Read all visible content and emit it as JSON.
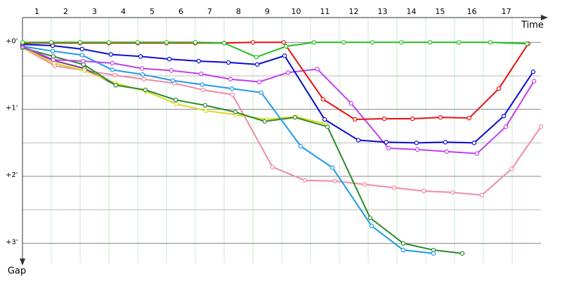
{
  "chart_data": {
    "type": "line",
    "x_label": "Time",
    "y_label": "Gap",
    "xlim": [
      0,
      18.5
    ],
    "ylim": [
      -0.37,
      3.3
    ],
    "y_inverted": true,
    "xticks": [
      {
        "value": 0.5,
        "label": "1"
      },
      {
        "value": 1.5,
        "label": "2"
      },
      {
        "value": 2.5,
        "label": "3"
      },
      {
        "value": 3.5,
        "label": "4"
      },
      {
        "value": 4.5,
        "label": "5"
      },
      {
        "value": 5.5,
        "label": "6"
      },
      {
        "value": 6.5,
        "label": "7"
      },
      {
        "value": 7.5,
        "label": "8"
      },
      {
        "value": 8.5,
        "label": "9"
      },
      {
        "value": 9.5,
        "label": "10"
      },
      {
        "value": 10.5,
        "label": "11"
      },
      {
        "value": 11.5,
        "label": "12"
      },
      {
        "value": 12.5,
        "label": "13"
      },
      {
        "value": 13.5,
        "label": "14"
      },
      {
        "value": 14.5,
        "label": "15"
      },
      {
        "value": 15.6,
        "label": "16"
      },
      {
        "value": 16.8,
        "label": "17"
      }
    ],
    "xgrid": [
      1,
      2,
      3,
      4,
      5,
      6,
      7,
      8,
      9,
      10,
      11,
      12,
      13,
      14,
      15,
      16,
      17
    ],
    "yticks": [
      {
        "value": 0,
        "label": "+0'"
      },
      {
        "value": 1,
        "label": "+1'"
      },
      {
        "value": 2,
        "label": "+2'"
      },
      {
        "value": 3,
        "label": "+3'"
      }
    ],
    "minor_yticks": [
      0.5,
      1.5,
      2.5
    ],
    "series": [
      {
        "color": "#f08aa8",
        "x": [
          0,
          1.12,
          2.17,
          3.2,
          4.22,
          5.27,
          6.27,
          7.29,
          8.68,
          9.8,
          10.85,
          11.88,
          12.9,
          13.93,
          14.93,
          15.95,
          16.98,
          18.0
        ],
        "values": [
          0.08,
          0.35,
          0.42,
          0.49,
          0.55,
          0.61,
          0.71,
          0.78,
          1.86,
          2.06,
          2.07,
          2.12,
          2.17,
          2.22,
          2.24,
          2.28,
          1.89,
          1.26
        ]
      },
      {
        "color": "#7a3a8a",
        "x": [
          0,
          1.07,
          2.15,
          3.24
        ],
        "values": [
          0.08,
          0.27,
          0.39,
          0.64
        ]
      },
      {
        "color": "#d8d820",
        "x": [
          0,
          1.1,
          2.15,
          3.22,
          4.29,
          5.34,
          6.37,
          7.41,
          8.46,
          9.49,
          10.54
        ],
        "values": [
          0.08,
          0.31,
          0.42,
          0.61,
          0.73,
          0.92,
          1.02,
          1.08,
          1.15,
          1.11,
          1.22
        ]
      },
      {
        "color": "#2a8a2a",
        "x": [
          0,
          1.07,
          2.12,
          3.24,
          4.27,
          5.32,
          6.34,
          7.39,
          8.41,
          9.46,
          10.59,
          12.07,
          13.22,
          14.27,
          15.27
        ],
        "values": [
          0.08,
          0.21,
          0.33,
          0.64,
          0.71,
          0.86,
          0.94,
          1.04,
          1.18,
          1.12,
          1.26,
          2.62,
          3.0,
          3.1,
          3.15
        ]
      },
      {
        "color": "#1e9be6",
        "x": [
          0,
          1.05,
          2.07,
          3.12,
          4.17,
          5.22,
          6.24,
          7.27,
          8.29,
          9.66,
          10.76,
          12.12,
          13.22,
          14.27
        ],
        "values": [
          0.06,
          0.13,
          0.19,
          0.41,
          0.48,
          0.57,
          0.63,
          0.69,
          0.75,
          1.55,
          1.87,
          2.74,
          3.1,
          3.15
        ]
      },
      {
        "color": "#c040f0",
        "x": [
          0,
          1.07,
          2.1,
          3.12,
          4.15,
          5.17,
          6.2,
          7.22,
          8.22,
          9.22,
          10.24,
          11.41,
          12.71,
          13.71,
          14.73,
          15.78,
          16.78,
          17.76
        ],
        "values": [
          0.06,
          0.26,
          0.28,
          0.31,
          0.39,
          0.42,
          0.47,
          0.55,
          0.59,
          0.45,
          0.4,
          0.91,
          1.58,
          1.6,
          1.63,
          1.66,
          1.26,
          0.58
        ]
      },
      {
        "color": "#0a0ad0",
        "x": [
          0,
          1.05,
          2.07,
          3.07,
          4.1,
          5.1,
          6.12,
          7.15,
          8.15,
          9.1,
          10.49,
          11.66,
          12.63,
          13.68,
          14.68,
          15.68,
          16.71,
          17.73
        ],
        "values": [
          0.03,
          0.05,
          0.1,
          0.18,
          0.21,
          0.25,
          0.28,
          0.3,
          0.33,
          0.2,
          1.15,
          1.46,
          1.49,
          1.5,
          1.49,
          1.5,
          1.1,
          0.44
        ]
      },
      {
        "color": "#e81010",
        "x": [
          0,
          1,
          2,
          3,
          4,
          5,
          6,
          7,
          8,
          9.07,
          10.44,
          11.54,
          12.56,
          13.54,
          14.51,
          15.51,
          16.54,
          17.56
        ],
        "values": [
          0.01,
          0.01,
          0.01,
          0.01,
          0.01,
          0.01,
          0.01,
          0.01,
          0.0,
          0.0,
          0.85,
          1.15,
          1.14,
          1.14,
          1.12,
          1.13,
          0.69,
          0.02
        ]
      },
      {
        "color": "#22c022",
        "x": [
          0,
          1,
          2,
          3,
          4,
          5,
          6,
          7,
          8.12,
          9.15,
          10.12,
          11.15,
          12.15,
          13.15,
          14.15,
          15.15,
          16.24,
          17.51
        ],
        "values": [
          0,
          0,
          0,
          0,
          0,
          0,
          0,
          0.01,
          0.22,
          0.06,
          0,
          0,
          0,
          0,
          0,
          0,
          0,
          0.02
        ]
      }
    ]
  }
}
